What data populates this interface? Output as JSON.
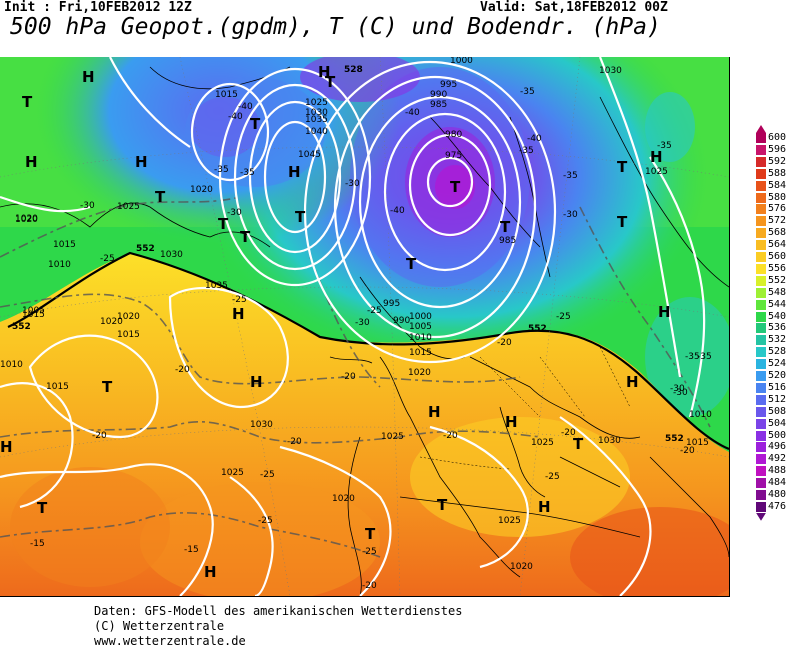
{
  "header": {
    "init": "Init : Fri,10FEB2012 12Z",
    "valid": "Valid: Sat,18FEB2012 00Z",
    "title": "500 hPa Geopot.(gpdm), T (C) und Bodendr. (hPa)"
  },
  "legend": {
    "values": [
      "600",
      "596",
      "592",
      "588",
      "584",
      "580",
      "576",
      "572",
      "568",
      "564",
      "560",
      "556",
      "552",
      "548",
      "544",
      "540",
      "536",
      "532",
      "528",
      "524",
      "520",
      "516",
      "512",
      "508",
      "504",
      "500",
      "496",
      "492",
      "488",
      "484",
      "480",
      "476"
    ],
    "colors": [
      "#b0005a",
      "#c8146a",
      "#d62a2a",
      "#e03a1a",
      "#e8521a",
      "#ee6a1c",
      "#f2801c",
      "#f5951e",
      "#f7aa20",
      "#f9bd22",
      "#fbcd24",
      "#fce028",
      "#d8f02a",
      "#9ef034",
      "#5fe63c",
      "#2ed84a",
      "#22c87a",
      "#24c4a4",
      "#28c8c8",
      "#2ab4e0",
      "#3a9cf0",
      "#4a84f0",
      "#5a6cf0",
      "#6a58ec",
      "#7a44e8",
      "#8a30e4",
      "#9c20dc",
      "#b018d4",
      "#c010c0",
      "#a010a8",
      "#800c90",
      "#600878"
    ]
  },
  "pressure_labels": [
    "1015",
    "1020",
    "1020",
    "1020",
    "1025",
    "1025",
    "1030",
    "1035",
    "1040",
    "1045",
    "1000",
    "995",
    "990",
    "985",
    "980",
    "975",
    "985",
    "1030",
    "1025",
    "1020",
    "1015",
    "1010",
    "1015",
    "1030",
    "1035",
    "1020",
    "1015",
    "1005",
    "1010",
    "1015",
    "1020",
    "1030",
    "1025",
    "1020",
    "1025",
    "1025",
    "1020",
    "1025",
    "1030",
    "1015",
    "1010",
    "990",
    "995",
    "1000",
    "1005",
    "1010",
    "1015"
  ],
  "temp_labels": [
    "-40",
    "-40",
    "-35",
    "-35",
    "-30",
    "-25",
    "-25",
    "-30",
    "-20",
    "-20",
    "-20",
    "-20",
    "-20",
    "-25",
    "-25",
    "-15",
    "-15",
    "-20",
    "-25",
    "-35",
    "-30",
    "-35",
    "-40",
    "-30",
    "-35",
    "-40",
    "-35",
    "-35",
    "-30",
    "-25",
    "-20",
    "-20",
    "-20",
    "-25",
    "-30",
    "-35",
    "-25",
    "-30",
    "-40"
  ],
  "centers": [
    "H",
    "H",
    "H",
    "H",
    "H",
    "H",
    "H",
    "H",
    "H",
    "H",
    "H",
    "H",
    "H",
    "H",
    "H",
    "T",
    "T",
    "T",
    "T",
    "T",
    "T",
    "T",
    "T",
    "T",
    "T",
    "T",
    "T",
    "T",
    "T",
    "T",
    "T",
    "T"
  ],
  "isohypse_labels": [
    "552",
    "552",
    "552",
    "528",
    "552"
  ],
  "footer": {
    "line1": "Daten: GFS-Modell des amerikanischen Wetterdienstes",
    "line2": "(C) Wetterzentrale",
    "line3": "www.wetterzentrale.de"
  }
}
